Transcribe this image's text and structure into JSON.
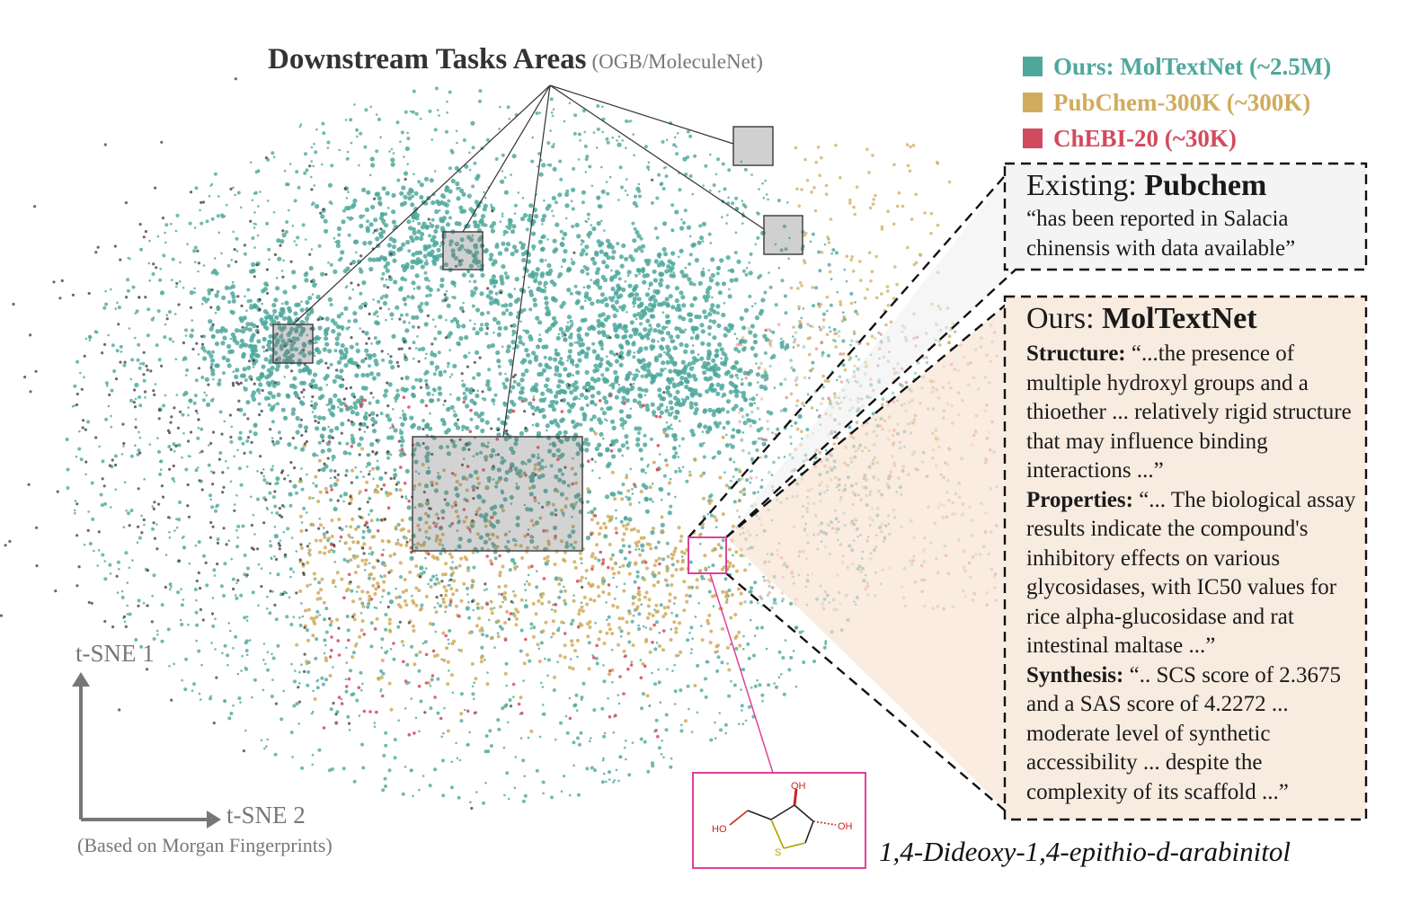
{
  "header": {
    "title": "Downstream Tasks Areas",
    "subtitle": "(OGB/MoleculeNet)"
  },
  "legend": {
    "items": [
      {
        "label": "Ours: MolTextNet (~2.5M)",
        "color": "#4fa89c"
      },
      {
        "label": "PubChem-300K (~300K)",
        "color": "#d0ac5c"
      },
      {
        "label": "ChEBI-20 (~30K)",
        "color": "#d24a5e"
      }
    ]
  },
  "pubchem_box": {
    "prefix": "Existing: ",
    "name": "Pubchem",
    "quote": "“has been reported in Salacia chinensis with data available”"
  },
  "moltextnet_box": {
    "prefix": "Ours: ",
    "name": "MolTextNet",
    "structure_label": "Structure:",
    "structure_text": "“...the presence of multiple hydroxyl groups and a thioether ... relatively rigid structure that may influence binding interactions ...”",
    "properties_label": "Properties:",
    "properties_text": "“... The biological assay results indicate the compound's inhibitory effects on various glycosidases, with IC50 values for rice alpha-glucosidase and rat intestinal maltase ...”",
    "synthesis_label": "Synthesis:",
    "synthesis_text": "“.. SCS score of 2.3675 and a SAS score of 4.2272 ... moderate level of synthetic accessibility ... despite the complexity of its scaffold ...”"
  },
  "axes": {
    "y_label": "t-SNE 1",
    "x_label": "t-SNE 2",
    "note": "(Based on Morgan Fingerprints)"
  },
  "molecule": {
    "name": "1,4-Dideoxy-1,4-epithio-d-arabinitol",
    "atom_oh_top": "OH",
    "atom_oh_right": "OH",
    "atom_ho_left": "HO",
    "atom_s": "S"
  },
  "colors": {
    "moltextnet": "#4fa89c",
    "pubchem": "#d0ac5c",
    "chebi": "#d24a5e",
    "task_points": "#3a3a3a",
    "highlight": "#e0409a"
  }
}
